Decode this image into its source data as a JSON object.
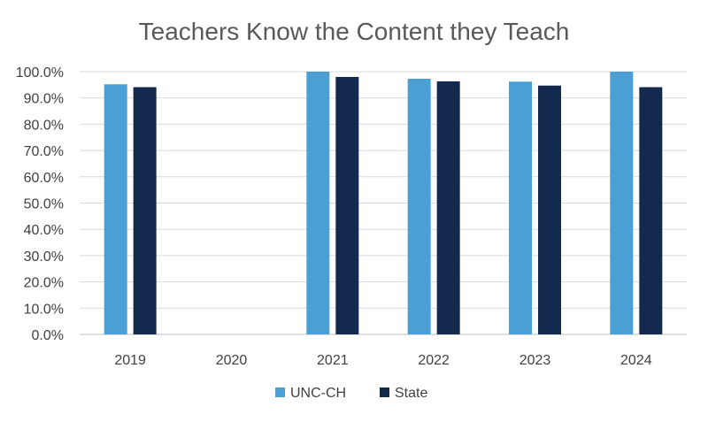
{
  "chart_data": {
    "type": "bar",
    "title": "Teachers Know the Content they Teach",
    "categories": [
      "2019",
      "2020",
      "2021",
      "2022",
      "2023",
      "2024"
    ],
    "series": [
      {
        "name": "UNC-CH",
        "color": "#4a9fd5",
        "values": [
          95.2,
          null,
          100.0,
          97.3,
          96.2,
          100.0
        ]
      },
      {
        "name": "State",
        "color": "#132a4e",
        "values": [
          94.1,
          null,
          98.0,
          96.3,
          94.7,
          94.1
        ]
      }
    ],
    "ylim": [
      0,
      100
    ],
    "yticks": [
      0,
      10,
      20,
      30,
      40,
      50,
      60,
      70,
      80,
      90,
      100
    ],
    "ytick_labels": [
      "0.0%",
      "10.0%",
      "20.0%",
      "30.0%",
      "40.0%",
      "50.0%",
      "60.0%",
      "70.0%",
      "80.0%",
      "90.0%",
      "100.0%"
    ],
    "grid": true,
    "legend_position": "bottom",
    "gridline_color": "#d9d9d9"
  }
}
